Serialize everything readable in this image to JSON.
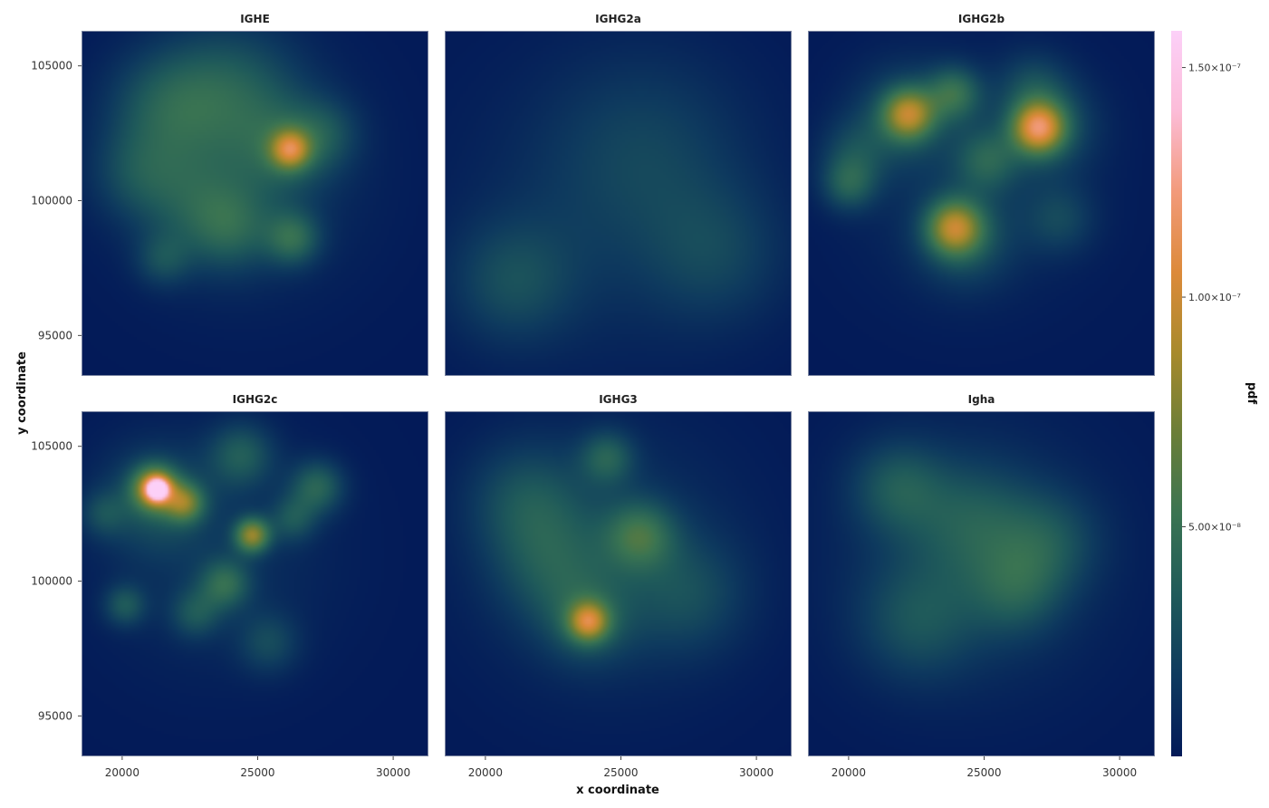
{
  "chart_data": {
    "type": "heatmap",
    "xlabel": "x coordinate",
    "ylabel": "y coordinate",
    "xlim": [
      18500,
      31300
    ],
    "ylim": [
      93500,
      106300
    ],
    "xticks": [
      20000,
      25000,
      30000
    ],
    "xtick_labels": [
      "20000",
      "25000",
      "30000"
    ],
    "yticks": [
      95000,
      100000,
      105000
    ],
    "ytick_labels": [
      "95000",
      "100000",
      "105000"
    ],
    "colorbar": {
      "label": "pdf",
      "range": [
        0,
        1.58e-07
      ],
      "ticks": [
        5e-08,
        1e-07,
        1.5e-07
      ],
      "tick_labels": [
        "5.00×10⁻⁸",
        "1.00×10⁻⁷",
        "1.50×10⁻⁷"
      ],
      "colors": [
        "#031a58",
        "#0e3a5e",
        "#1f5a5a",
        "#3a7452",
        "#6a7e38",
        "#a78a2c",
        "#dc8a3a",
        "#f29a7a",
        "#fcbcd8",
        "#fcd0f8"
      ]
    },
    "background_color": "#031a58",
    "grid": false,
    "panels": [
      {
        "title": "IGHE",
        "hotspots": [
          {
            "x": 24000,
            "y": 104000,
            "sigma": 1800,
            "pdf": 3e-08
          },
          {
            "x": 21500,
            "y": 103500,
            "sigma": 1500,
            "pdf": 2.6e-08
          },
          {
            "x": 26200,
            "y": 101900,
            "sigma": 500,
            "pdf": 6.8e-08
          },
          {
            "x": 26000,
            "y": 101900,
            "sigma": 1200,
            "pdf": 2.2e-08
          },
          {
            "x": 26300,
            "y": 98600,
            "sigma": 700,
            "pdf": 3.8e-08
          },
          {
            "x": 24000,
            "y": 99000,
            "sigma": 1100,
            "pdf": 2.8e-08
          },
          {
            "x": 22500,
            "y": 100000,
            "sigma": 1400,
            "pdf": 2e-08
          },
          {
            "x": 20500,
            "y": 101000,
            "sigma": 1200,
            "pdf": 2e-08
          },
          {
            "x": 21500,
            "y": 97800,
            "sigma": 700,
            "pdf": 2.2e-08
          },
          {
            "x": 27500,
            "y": 102500,
            "sigma": 900,
            "pdf": 2e-08
          },
          {
            "x": 24500,
            "y": 101000,
            "sigma": 3000,
            "pdf": 1.6e-08
          }
        ]
      },
      {
        "title": "IGHG2a",
        "hotspots": [
          {
            "x": 21000,
            "y": 97000,
            "sigma": 1600,
            "pdf": 2.4e-08
          },
          {
            "x": 28500,
            "y": 98000,
            "sigma": 1800,
            "pdf": 1.8e-08
          },
          {
            "x": 26000,
            "y": 102000,
            "sigma": 2500,
            "pdf": 1.5e-08
          },
          {
            "x": 24500,
            "y": 99500,
            "sigma": 3800,
            "pdf": 1.2e-08
          }
        ]
      },
      {
        "title": "IGHG2b",
        "hotspots": [
          {
            "x": 22200,
            "y": 103200,
            "sigma": 650,
            "pdf": 6.8e-08
          },
          {
            "x": 22000,
            "y": 103200,
            "sigma": 1300,
            "pdf": 2.4e-08
          },
          {
            "x": 27000,
            "y": 102700,
            "sigma": 650,
            "pdf": 8.5e-08
          },
          {
            "x": 27400,
            "y": 102800,
            "sigma": 1200,
            "pdf": 2.8e-08
          },
          {
            "x": 23900,
            "y": 99000,
            "sigma": 700,
            "pdf": 7e-08
          },
          {
            "x": 24300,
            "y": 98500,
            "sigma": 1200,
            "pdf": 2.4e-08
          },
          {
            "x": 23900,
            "y": 104000,
            "sigma": 700,
            "pdf": 4e-08
          },
          {
            "x": 25100,
            "y": 101500,
            "sigma": 800,
            "pdf": 3e-08
          },
          {
            "x": 20000,
            "y": 100600,
            "sigma": 700,
            "pdf": 3.2e-08
          },
          {
            "x": 20200,
            "y": 101800,
            "sigma": 900,
            "pdf": 2e-08
          },
          {
            "x": 27800,
            "y": 99300,
            "sigma": 900,
            "pdf": 2e-08
          },
          {
            "x": 26800,
            "y": 104300,
            "sigma": 900,
            "pdf": 1.8e-08
          },
          {
            "x": 24500,
            "y": 100800,
            "sigma": 3000,
            "pdf": 1.2e-08
          }
        ]
      },
      {
        "title": "IGHG2c",
        "hotspots": [
          {
            "x": 21300,
            "y": 103400,
            "sigma": 270,
            "pdf": 1.1e-07
          },
          {
            "x": 21200,
            "y": 103450,
            "sigma": 560,
            "pdf": 8e-08
          },
          {
            "x": 22300,
            "y": 102900,
            "sigma": 500,
            "pdf": 5.5e-08
          },
          {
            "x": 21200,
            "y": 103000,
            "sigma": 1400,
            "pdf": 2.5e-08
          },
          {
            "x": 24800,
            "y": 101700,
            "sigma": 450,
            "pdf": 7.2e-08
          },
          {
            "x": 24400,
            "y": 104700,
            "sigma": 850,
            "pdf": 3.2e-08
          },
          {
            "x": 27200,
            "y": 103500,
            "sigma": 700,
            "pdf": 3.8e-08
          },
          {
            "x": 26300,
            "y": 102300,
            "sigma": 600,
            "pdf": 2.6e-08
          },
          {
            "x": 23800,
            "y": 99900,
            "sigma": 650,
            "pdf": 3.8e-08
          },
          {
            "x": 20100,
            "y": 99100,
            "sigma": 550,
            "pdf": 3e-08
          },
          {
            "x": 22700,
            "y": 98800,
            "sigma": 650,
            "pdf": 2.6e-08
          },
          {
            "x": 25400,
            "y": 97700,
            "sigma": 800,
            "pdf": 2.2e-08
          },
          {
            "x": 19300,
            "y": 102500,
            "sigma": 600,
            "pdf": 2e-08
          },
          {
            "x": 23500,
            "y": 101000,
            "sigma": 3000,
            "pdf": 1.2e-08
          }
        ]
      },
      {
        "title": "IGHG3",
        "hotspots": [
          {
            "x": 23800,
            "y": 98500,
            "sigma": 500,
            "pdf": 6.8e-08
          },
          {
            "x": 23800,
            "y": 98500,
            "sigma": 1100,
            "pdf": 2.4e-08
          },
          {
            "x": 25700,
            "y": 101700,
            "sigma": 900,
            "pdf": 4e-08
          },
          {
            "x": 24500,
            "y": 104600,
            "sigma": 700,
            "pdf": 3.2e-08
          },
          {
            "x": 21500,
            "y": 103000,
            "sigma": 1500,
            "pdf": 2.5e-08
          },
          {
            "x": 22500,
            "y": 100500,
            "sigma": 1500,
            "pdf": 2.2e-08
          },
          {
            "x": 27500,
            "y": 99500,
            "sigma": 1500,
            "pdf": 2e-08
          },
          {
            "x": 24600,
            "y": 100800,
            "sigma": 3300,
            "pdf": 1.7e-08
          }
        ]
      },
      {
        "title": "Igha",
        "hotspots": [
          {
            "x": 21800,
            "y": 103500,
            "sigma": 1200,
            "pdf": 2.8e-08
          },
          {
            "x": 24600,
            "y": 102200,
            "sigma": 1500,
            "pdf": 2.2e-08
          },
          {
            "x": 27400,
            "y": 101500,
            "sigma": 1300,
            "pdf": 2.2e-08
          },
          {
            "x": 26200,
            "y": 99700,
            "sigma": 1200,
            "pdf": 2.4e-08
          },
          {
            "x": 22500,
            "y": 98500,
            "sigma": 1500,
            "pdf": 2.2e-08
          },
          {
            "x": 24500,
            "y": 100800,
            "sigma": 3300,
            "pdf": 1.8e-08
          }
        ]
      }
    ]
  }
}
